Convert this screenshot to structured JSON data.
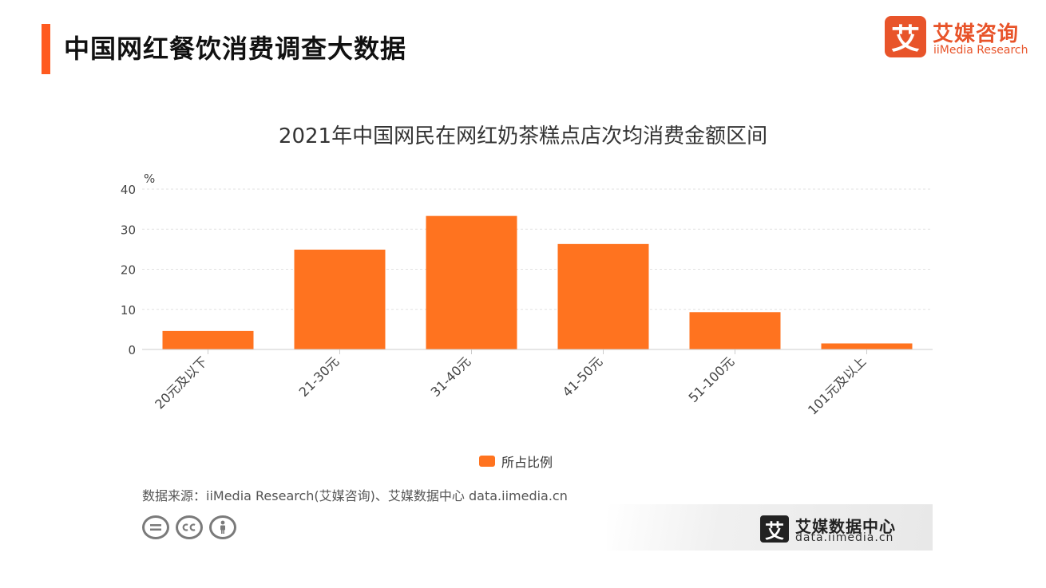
{
  "header": {
    "title": "中国网红餐饮消费调查大数据",
    "accent_color": "#FF5A1F"
  },
  "logo": {
    "mark": "艾",
    "name_cn": "艾媒咨询",
    "name_en": "iiMedia Research",
    "color": "#E8542A"
  },
  "chart_data": {
    "type": "bar",
    "title": "2021年中国网民在网红奶茶糕点店次均消费金额区间",
    "ylabel": "%",
    "xlabel": "",
    "categories": [
      "20元及以下",
      "21-30元",
      "31-40元",
      "41-50元",
      "51-100元",
      "101元及以上"
    ],
    "series": [
      {
        "name": "所占比例",
        "values": [
          4.6,
          24.9,
          33.3,
          26.3,
          9.3,
          1.5
        ],
        "color": "#FF731F"
      }
    ],
    "ylim": [
      0,
      40
    ],
    "yticks": [
      0,
      10,
      20,
      30,
      40
    ],
    "grid": true,
    "legend_position": "bottom"
  },
  "footer": {
    "source": "数据来源：iiMedia Research(艾媒咨询)、艾媒数据中心 data.iimedia.cn",
    "license_icons": [
      "equal-icon",
      "cc-icon",
      "person-icon"
    ],
    "brand_mark": "艾",
    "brand_cn": "艾媒数据中心",
    "brand_url": "data.iimedia.cn"
  }
}
